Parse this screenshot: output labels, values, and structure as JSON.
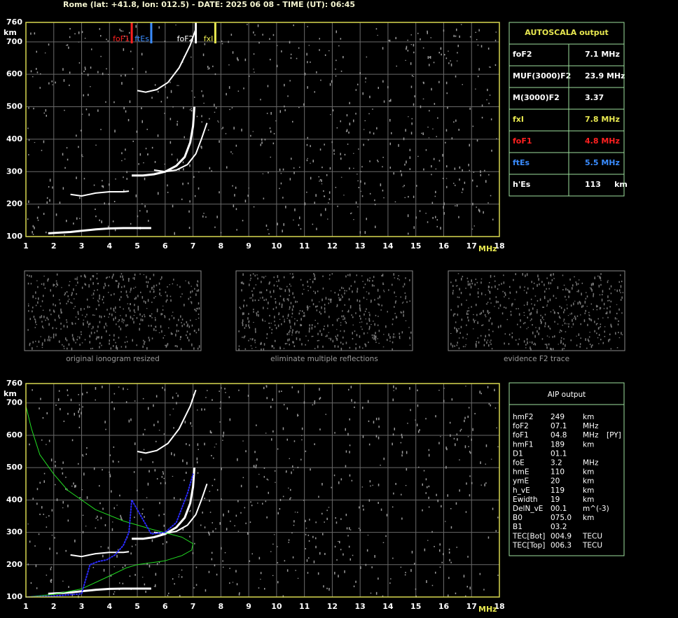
{
  "header": {
    "title": "Rome (lat: +41.8, lon: 012.5) - DATE: 2025 06 08 - TIME (UT): 06:45"
  },
  "chart_data": [
    {
      "type": "line",
      "y_label": "km",
      "x_label": "MHz",
      "xlim": [
        1,
        18
      ],
      "xticks": [
        1,
        2,
        3,
        4,
        5,
        6,
        7,
        8,
        9,
        10,
        11,
        12,
        13,
        14,
        15,
        16,
        17,
        18
      ],
      "ylim": [
        100,
        760
      ],
      "yticks": [
        100,
        200,
        300,
        400,
        500,
        600,
        700,
        760
      ],
      "grid": true,
      "markers": [
        {
          "label": "foF1",
          "value": 4.8,
          "color": "#ff2020"
        },
        {
          "label": "ftEs",
          "value": 5.5,
          "color": "#3a8cff"
        },
        {
          "label": "foF2",
          "value": 7.1,
          "color": "#ffffff"
        },
        {
          "label": "fxI",
          "value": 7.8,
          "color": "#e8e850"
        }
      ],
      "series": [
        {
          "color": "#ffffff",
          "width": 3,
          "x": [
            1.8,
            2.2,
            2.6,
            3.0,
            3.5,
            4.0,
            4.5,
            5.0,
            5.5
          ],
          "values": [
            110,
            112,
            114,
            118,
            122,
            125,
            126,
            126,
            126
          ]
        },
        {
          "color": "#ffffff",
          "width": 2,
          "x": [
            2.6,
            3.0,
            3.5,
            4.0,
            4.5,
            4.7
          ],
          "values": [
            230,
            225,
            234,
            238,
            238,
            240
          ]
        },
        {
          "color": "#ffffff",
          "width": 3,
          "x": [
            4.8,
            5.2,
            5.6,
            6.0,
            6.4,
            6.7,
            6.9,
            7.0,
            7.05
          ],
          "values": [
            288,
            288,
            292,
            300,
            318,
            345,
            390,
            440,
            500
          ]
        },
        {
          "color": "#ffffff",
          "width": 2,
          "x": [
            5.6,
            6.0,
            6.4,
            6.8,
            7.1,
            7.3,
            7.5
          ],
          "values": [
            305,
            300,
            305,
            322,
            355,
            400,
            450
          ]
        },
        {
          "color": "#ffffff",
          "width": 2,
          "x": [
            5.0,
            5.3,
            5.7,
            6.1,
            6.5,
            6.9,
            7.1
          ],
          "values": [
            550,
            545,
            553,
            575,
            620,
            690,
            740
          ]
        }
      ]
    },
    {
      "type": "line",
      "y_label": "km",
      "x_label": "MHz",
      "xlim": [
        1,
        18
      ],
      "xticks": [
        1,
        2,
        3,
        4,
        5,
        6,
        7,
        8,
        9,
        10,
        11,
        12,
        13,
        14,
        15,
        16,
        17,
        18
      ],
      "ylim": [
        100,
        760
      ],
      "yticks": [
        100,
        200,
        300,
        400,
        500,
        600,
        700,
        760
      ],
      "grid": true,
      "series": [
        {
          "color": "#ffffff",
          "width": 3,
          "x": [
            1.8,
            2.2,
            2.6,
            3.0,
            3.5,
            4.0,
            4.5,
            5.0,
            5.5
          ],
          "values": [
            110,
            112,
            114,
            118,
            122,
            125,
            126,
            126,
            126
          ]
        },
        {
          "color": "#ffffff",
          "width": 2,
          "x": [
            2.6,
            3.0,
            3.5,
            4.0,
            4.5,
            4.7
          ],
          "values": [
            230,
            225,
            234,
            238,
            238,
            240
          ]
        },
        {
          "color": "#ffffff",
          "width": 3,
          "x": [
            4.8,
            5.2,
            5.6,
            6.0,
            6.4,
            6.7,
            6.9,
            7.0,
            7.05
          ],
          "values": [
            280,
            280,
            285,
            295,
            315,
            345,
            390,
            440,
            500
          ]
        },
        {
          "color": "#ffffff",
          "width": 2,
          "x": [
            5.6,
            6.0,
            6.4,
            6.8,
            7.1,
            7.3,
            7.5
          ],
          "values": [
            300,
            296,
            303,
            322,
            355,
            400,
            450
          ]
        },
        {
          "color": "#ffffff",
          "width": 2,
          "x": [
            5.0,
            5.3,
            5.7,
            6.1,
            6.5,
            6.9,
            7.1
          ],
          "values": [
            550,
            545,
            553,
            575,
            620,
            690,
            740
          ]
        },
        {
          "color": "#22dd22",
          "width": 1,
          "x": [
            1.0,
            2.0,
            3.0,
            4.0,
            4.6,
            5.0,
            6.0,
            6.6,
            6.95,
            7.0,
            6.6,
            5.5,
            4.5,
            3.5,
            2.5,
            2.0,
            1.5,
            1.2,
            1.0
          ],
          "values": [
            100,
            108,
            125,
            165,
            190,
            200,
            212,
            228,
            245,
            265,
            285,
            310,
            335,
            370,
            430,
            480,
            540,
            620,
            690
          ]
        },
        {
          "color": "#2a2aff",
          "width": 2,
          "dash": true,
          "x": [
            1.0,
            2.0,
            3.0,
            3.3,
            3.6,
            3.9,
            4.2,
            4.5,
            4.7,
            4.8,
            5.5,
            6.0,
            6.4,
            6.8,
            7.0
          ],
          "values": [
            100,
            103,
            110,
            200,
            210,
            215,
            230,
            260,
            300,
            400,
            295,
            300,
            330,
            420,
            480
          ]
        }
      ]
    }
  ],
  "thumbnails": [
    {
      "caption": "original ionogram resized"
    },
    {
      "caption": "eliminate multiple reflections"
    },
    {
      "caption": "evidence F2 trace"
    }
  ],
  "autoscala": {
    "title": "AUTOSCALA output",
    "rows": [
      {
        "label": "foF2",
        "value": "7.1 MHz",
        "color": "#ffffff"
      },
      {
        "label": "MUF(3000)F2",
        "value": "23.9 MHz",
        "color": "#ffffff"
      },
      {
        "label": "M(3000)F2",
        "value": "3.37",
        "color": "#ffffff"
      },
      {
        "label": "fxI",
        "value": "7.8 MHz",
        "color": "#e8e850"
      },
      {
        "label": "foF1",
        "value": "4.8 MHz",
        "color": "#ff2020"
      },
      {
        "label": "ftEs",
        "value": "5.5 MHz",
        "color": "#3a8cff"
      },
      {
        "label": "h'Es",
        "value": "113     km",
        "color": "#ffffff"
      }
    ]
  },
  "aip": {
    "title": "AIP output",
    "rows": [
      [
        "hmF2",
        "249",
        "km",
        ""
      ],
      [
        "foF2",
        "07.1",
        "MHz",
        ""
      ],
      [
        "foF1",
        "04.8",
        "MHz",
        "[PY]"
      ],
      [
        "hmF1",
        "189",
        "km",
        ""
      ],
      [
        "D1",
        "01.1",
        "",
        ""
      ],
      [
        "foE",
        "3.2",
        "MHz",
        ""
      ],
      [
        "hmE",
        "110",
        "km",
        ""
      ],
      [
        "ymE",
        "20",
        "km",
        ""
      ],
      [
        "h_vE",
        "119",
        "km",
        ""
      ],
      [
        "Ewidth",
        "19",
        "km",
        ""
      ],
      [
        "DelN_vE",
        "00.1",
        "m^(-3)",
        ""
      ],
      [
        "B0",
        "075.0",
        "km",
        ""
      ],
      [
        "B1",
        "03.2",
        "",
        ""
      ],
      [
        "TEC[Bot]",
        "004.9",
        "TECU",
        ""
      ],
      [
        "TEC[Top]",
        "006.3",
        "TECU",
        ""
      ]
    ]
  }
}
